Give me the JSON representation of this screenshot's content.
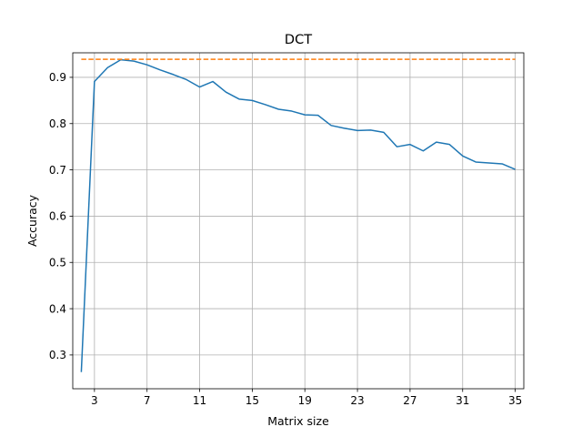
{
  "chart_data": {
    "type": "line",
    "title": "DCT",
    "xlabel": "Matrix size",
    "ylabel": "Accuracy",
    "xlim": [
      1.35,
      35.65
    ],
    "ylim": [
      0.227,
      0.953
    ],
    "xticks": [
      3,
      7,
      11,
      15,
      19,
      23,
      27,
      31,
      35
    ],
    "yticks": [
      0.3,
      0.4,
      0.5,
      0.6,
      0.7,
      0.8,
      0.9
    ],
    "grid": true,
    "series": [
      {
        "color": "#1f77b4",
        "style": "solid",
        "x": [
          2,
          3,
          4,
          5,
          6,
          7,
          8,
          9,
          10,
          11,
          12,
          13,
          14,
          15,
          16,
          17,
          18,
          19,
          20,
          21,
          22,
          23,
          24,
          25,
          26,
          27,
          28,
          29,
          30,
          31,
          32,
          33,
          34,
          35
        ],
        "y": [
          0.263,
          0.891,
          0.921,
          0.938,
          0.935,
          0.927,
          0.916,
          0.906,
          0.895,
          0.879,
          0.891,
          0.868,
          0.853,
          0.85,
          0.841,
          0.831,
          0.827,
          0.819,
          0.818,
          0.796,
          0.79,
          0.785,
          0.786,
          0.781,
          0.75,
          0.755,
          0.741,
          0.76,
          0.755,
          0.73,
          0.717,
          0.715,
          0.713,
          0.701
        ]
      },
      {
        "color": "#ff7f0e",
        "style": "dashed",
        "x": [
          2,
          35
        ],
        "y": [
          0.939,
          0.939
        ]
      }
    ]
  }
}
